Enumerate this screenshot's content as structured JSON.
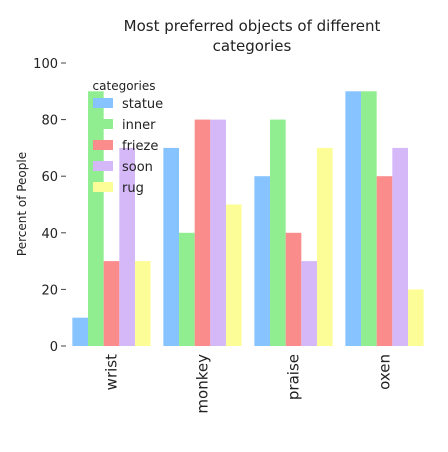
{
  "chart_data": {
    "type": "bar",
    "title_line1": "Most preferred objects of different",
    "title_line2": "categories",
    "xlabel": "",
    "ylabel": "Percent of People",
    "ylim": [
      0,
      100
    ],
    "yticks": [
      0,
      20,
      40,
      60,
      80,
      100
    ],
    "grid": false,
    "legend_title": "categories",
    "legend_position": "top-left",
    "categories": [
      "wrist",
      "monkey",
      "praise",
      "oxen"
    ],
    "series": [
      {
        "name": "statue",
        "color": "#87c3ff",
        "values": [
          10,
          70,
          60,
          90
        ]
      },
      {
        "name": "inner",
        "color": "#90ee90",
        "values": [
          90,
          40,
          80,
          90
        ]
      },
      {
        "name": "frieze",
        "color": "#fa8c8c",
        "values": [
          30,
          80,
          40,
          60
        ]
      },
      {
        "name": "soon",
        "color": "#d5b8f7",
        "values": [
          70,
          80,
          30,
          70
        ]
      },
      {
        "name": "rug",
        "color": "#fdfd97",
        "values": [
          30,
          50,
          70,
          20
        ]
      }
    ]
  }
}
